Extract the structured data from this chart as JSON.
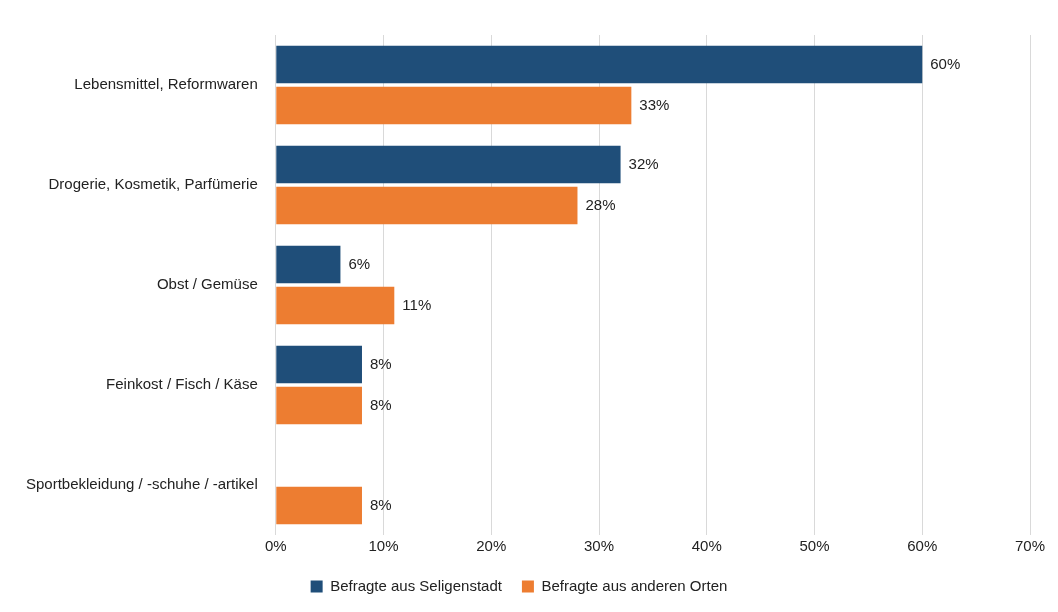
{
  "chart_data": {
    "type": "bar",
    "orientation": "horizontal",
    "categories": [
      "Lebensmittel, Reformwaren",
      "Drogerie, Kosmetik, Parfümerie",
      "Obst / Gemüse",
      "Feinkost / Fisch / Käse",
      "Sportbekleidung / -schuhe / -artikel"
    ],
    "series": [
      {
        "name": "Befragte aus Seligenstadt",
        "color": "#1f4e79",
        "values": [
          60,
          32,
          6,
          8,
          null
        ],
        "value_labels": [
          "60%",
          "32%",
          "6%",
          "8%",
          null
        ]
      },
      {
        "name": "Befragte aus anderen Orten",
        "color": "#ed7d31",
        "values": [
          33,
          28,
          11,
          8,
          8
        ],
        "value_labels": [
          "33%",
          "28%",
          "11%",
          "8%",
          "8%"
        ]
      }
    ],
    "xlim": [
      0,
      70
    ],
    "xticks": [
      {
        "value": 0,
        "label": "0%"
      },
      {
        "value": 10,
        "label": "10%"
      },
      {
        "value": 20,
        "label": "20%"
      },
      {
        "value": 30,
        "label": "30%"
      },
      {
        "value": 40,
        "label": "40%"
      },
      {
        "value": 50,
        "label": "50%"
      },
      {
        "value": 60,
        "label": "60%"
      },
      {
        "value": 70,
        "label": "70%"
      }
    ],
    "grid": "x",
    "legend": "bottom"
  }
}
